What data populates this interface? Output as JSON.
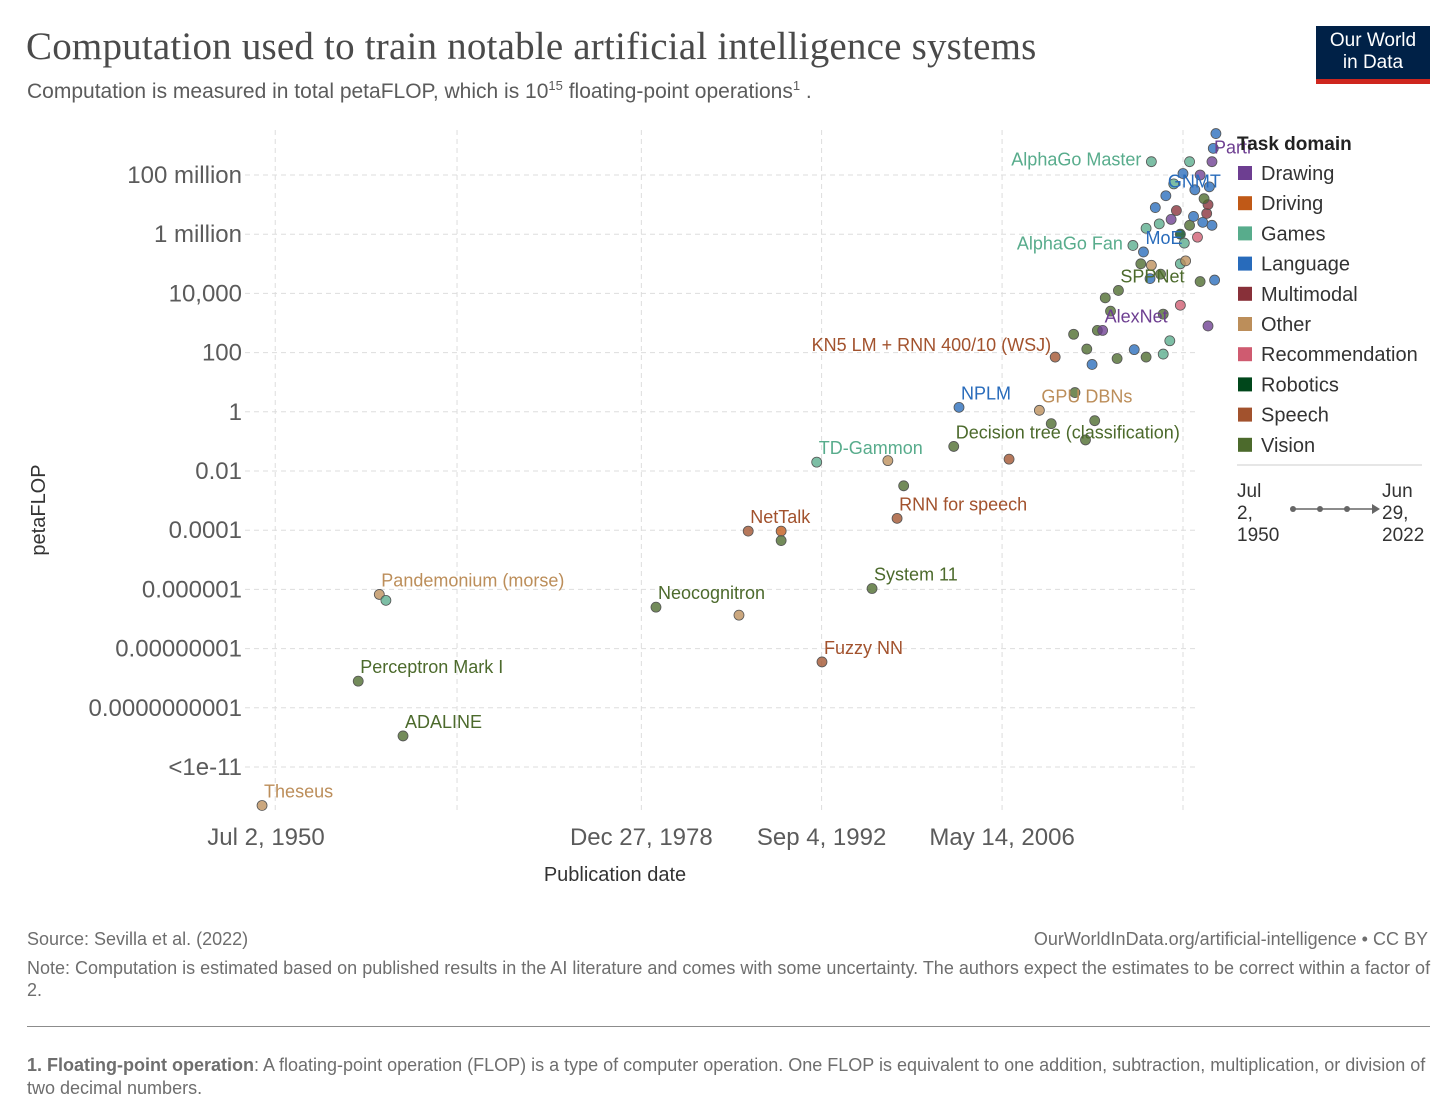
{
  "title": "Computation used to train notable artificial intelligence systems",
  "subtitle": "Computation is measured in total petaFLOP, which is 10",
  "subtitle_sup": "15",
  "subtitle_end": " floating-point operations",
  "subtitle_ref": "1",
  "subtitle_tail": " .",
  "logo": {
    "line1": "Our World",
    "line2": "in Data",
    "bg": "#002147",
    "accent": "#ce261e"
  },
  "footer": {
    "source": "Source: Sevilla et al. (2022)",
    "url": "OurWorldInData.org/artificial-intelligence • CC BY",
    "note": "Note: Computation is estimated based on published results in the AI literature and comes with some uncertainty. The authors expect the estimates to be correct within a factor of 2.",
    "footnote_term": "1. Floating-point operation",
    "footnote_text": ": A floating-point operation (FLOP) is a type of computer operation. One FLOP is equivalent to one addition, subtraction, multiplication, or division of two decimal numbers."
  },
  "timeline": {
    "start_label": [
      "Jul",
      "2,",
      "1950"
    ],
    "end_label": [
      "Jun",
      "29,",
      "2022"
    ]
  },
  "chart_data": {
    "type": "scatter",
    "ylabel": "petaFLOP",
    "xlabel": "Publication date",
    "y_scale": "log",
    "y_ticks": [
      {
        "label": "100 million",
        "exp": 8
      },
      {
        "label": "1 million",
        "exp": 6
      },
      {
        "label": "10,000",
        "exp": 4
      },
      {
        "label": "100",
        "exp": 2
      },
      {
        "label": "1",
        "exp": 0
      },
      {
        "label": "0.01",
        "exp": -2
      },
      {
        "label": "0.0001",
        "exp": -4
      },
      {
        "label": "0.000001",
        "exp": -6
      },
      {
        "label": "0.00000001",
        "exp": -8
      },
      {
        "label": "0.0000000001",
        "exp": -10
      },
      {
        "label": "<1e-11",
        "exp": -12
      }
    ],
    "x_ticks": [
      {
        "label": "Jul 2, 1950",
        "year": 1950.5
      },
      {
        "label": "Dec 27, 1978",
        "year": 1978.99
      },
      {
        "label": "Sep 4, 1992",
        "year": 1992.67
      },
      {
        "label": "May 14, 2006",
        "year": 2006.37
      }
    ],
    "x_gridlines": [
      1951.2,
      1965.0,
      1978.99,
      1992.67,
      2006.37,
      2020.1
    ],
    "grid": true,
    "legend_position": "right",
    "legend_title": "Task domain",
    "domains": [
      {
        "name": "Drawing",
        "color": "#6d3e91"
      },
      {
        "name": "Driving",
        "color": "#c05917"
      },
      {
        "name": "Games",
        "color": "#58ac8c"
      },
      {
        "name": "Language",
        "color": "#286bbb"
      },
      {
        "name": "Multimodal",
        "color": "#883039"
      },
      {
        "name": "Other",
        "color": "#bc8e5a"
      },
      {
        "name": "Recommendation",
        "color": "#cf5b70"
      },
      {
        "name": "Robotics",
        "color": "#00471b"
      },
      {
        "name": "Speech",
        "color": "#a2522d"
      },
      {
        "name": "Vision",
        "color": "#4c6a2c"
      }
    ],
    "points": [
      {
        "name": "Theseus",
        "year": 1950.2,
        "logy": -13.3,
        "domain": "Other",
        "labeled": true
      },
      {
        "name": "Perceptron Mark I",
        "year": 1957.5,
        "logy": -9.1,
        "domain": "Vision",
        "labeled": true
      },
      {
        "name": "ADALINE",
        "year": 1960.9,
        "logy": -10.95,
        "domain": "Vision",
        "labeled": true
      },
      {
        "name": "Pandemonium (morse)",
        "year": 1959.1,
        "logy": -6.17,
        "domain": "Other",
        "labeled": true
      },
      {
        "name": "",
        "year": 1959.6,
        "logy": -6.37,
        "domain": "Games",
        "labeled": false
      },
      {
        "name": "Neocognitron",
        "year": 1980.1,
        "logy": -6.6,
        "domain": "Vision",
        "labeled": true
      },
      {
        "name": "",
        "year": 1986.4,
        "logy": -6.87,
        "domain": "Other",
        "labeled": false
      },
      {
        "name": "NetTalk",
        "year": 1987.1,
        "logy": -4.03,
        "domain": "Speech",
        "labeled": true
      },
      {
        "name": "",
        "year": 1989.6,
        "logy": -4.03,
        "domain": "Driving",
        "labeled": false
      },
      {
        "name": "",
        "year": 1989.6,
        "logy": -4.35,
        "domain": "Vision",
        "labeled": false
      },
      {
        "name": "TD-Gammon",
        "year": 1992.3,
        "logy": -1.7,
        "domain": "Games",
        "labeled": true
      },
      {
        "name": "Fuzzy NN",
        "year": 1992.7,
        "logy": -8.45,
        "domain": "Speech",
        "labeled": true
      },
      {
        "name": "System 11",
        "year": 1996.5,
        "logy": -5.97,
        "domain": "Vision",
        "labeled": true
      },
      {
        "name": "",
        "year": 1997.7,
        "logy": -1.65,
        "domain": "Other",
        "labeled": false
      },
      {
        "name": "RNN for speech",
        "year": 1998.4,
        "logy": -3.6,
        "domain": "Speech",
        "labeled": true
      },
      {
        "name": "",
        "year": 1998.9,
        "logy": -2.5,
        "domain": "Vision",
        "labeled": false
      },
      {
        "name": "Decision tree (classification)",
        "year": 2002.7,
        "logy": -1.17,
        "domain": "Vision",
        "labeled": true
      },
      {
        "name": "",
        "year": 2006.9,
        "logy": -1.6,
        "domain": "Speech",
        "labeled": false
      },
      {
        "name": "NPLM",
        "year": 2003.1,
        "logy": 0.15,
        "domain": "Language",
        "labeled": true
      },
      {
        "name": "GPU DBNs",
        "year": 2009.2,
        "logy": 0.05,
        "domain": "Other",
        "labeled": true
      },
      {
        "name": "",
        "year": 2010.1,
        "logy": -0.4,
        "domain": "Vision",
        "labeled": false
      },
      {
        "name": "",
        "year": 2011.9,
        "logy": 0.65,
        "domain": "Vision",
        "labeled": false
      },
      {
        "name": "",
        "year": 2012.7,
        "logy": -0.95,
        "domain": "Vision",
        "labeled": false
      },
      {
        "name": "",
        "year": 2013.4,
        "logy": -0.3,
        "domain": "Vision",
        "labeled": false
      },
      {
        "name": "KN5 LM + RNN 400/10 (WSJ)",
        "year": 2010.4,
        "logy": 1.85,
        "domain": "Speech",
        "labeled": true
      },
      {
        "name": "",
        "year": 2011.8,
        "logy": 2.62,
        "domain": "Vision",
        "labeled": false
      },
      {
        "name": "",
        "year": 2012.8,
        "logy": 2.12,
        "domain": "Vision",
        "labeled": false
      },
      {
        "name": "",
        "year": 2013.2,
        "logy": 1.6,
        "domain": "Language",
        "labeled": false
      },
      {
        "name": "",
        "year": 2013.6,
        "logy": 2.75,
        "domain": "Vision",
        "labeled": false
      },
      {
        "name": "AlexNet",
        "year": 2014.0,
        "logy": 2.75,
        "domain": "Drawing",
        "labeled": true
      },
      {
        "name": "",
        "year": 2014.6,
        "logy": 3.4,
        "domain": "Vision",
        "labeled": false
      },
      {
        "name": "",
        "year": 2014.2,
        "logy": 3.85,
        "domain": "Vision",
        "labeled": false
      },
      {
        "name": "SPPNet",
        "year": 2015.2,
        "logy": 4.1,
        "domain": "Vision",
        "labeled": true
      },
      {
        "name": "",
        "year": 2016.4,
        "logy": 2.1,
        "domain": "Language",
        "labeled": false
      },
      {
        "name": "",
        "year": 2015.1,
        "logy": 1.8,
        "domain": "Vision",
        "labeled": false
      },
      {
        "name": "",
        "year": 2017.3,
        "logy": 1.85,
        "domain": "Vision",
        "labeled": false
      },
      {
        "name": "",
        "year": 2018.6,
        "logy": 1.95,
        "domain": "Games",
        "labeled": false
      },
      {
        "name": "",
        "year": 2019.1,
        "logy": 2.4,
        "domain": "Games",
        "labeled": false
      },
      {
        "name": "",
        "year": 2018.6,
        "logy": 3.3,
        "domain": "Vision",
        "labeled": false
      },
      {
        "name": "",
        "year": 2019.9,
        "logy": 3.6,
        "domain": "Recommendation",
        "labeled": false
      },
      {
        "name": "",
        "year": 2017.6,
        "logy": 4.5,
        "domain": "Language",
        "labeled": false
      },
      {
        "name": "",
        "year": 2018.4,
        "logy": 4.65,
        "domain": "Vision",
        "labeled": false
      },
      {
        "name": "",
        "year": 2016.9,
        "logy": 5.0,
        "domain": "Vision",
        "labeled": false
      },
      {
        "name": "MoE",
        "year": 2017.1,
        "logy": 5.4,
        "domain": "Language",
        "labeled": true
      },
      {
        "name": "",
        "year": 2017.7,
        "logy": 4.95,
        "domain": "Other",
        "labeled": false
      },
      {
        "name": "",
        "year": 2019.9,
        "logy": 5.0,
        "domain": "Games",
        "labeled": false
      },
      {
        "name": "",
        "year": 2020.3,
        "logy": 5.1,
        "domain": "Other",
        "labeled": false
      },
      {
        "name": "",
        "year": 2021.4,
        "logy": 4.4,
        "domain": "Vision",
        "labeled": false
      },
      {
        "name": "",
        "year": 2022.5,
        "logy": 4.45,
        "domain": "Language",
        "labeled": false
      },
      {
        "name": "",
        "year": 2022.0,
        "logy": 2.9,
        "domain": "Drawing",
        "labeled": false
      },
      {
        "name": "AlphaGo Fan",
        "year": 2016.3,
        "logy": 5.62,
        "domain": "Games",
        "labeled": true
      },
      {
        "name": "",
        "year": 2017.3,
        "logy": 6.2,
        "domain": "Games",
        "labeled": false
      },
      {
        "name": "",
        "year": 2018.3,
        "logy": 6.35,
        "domain": "Games",
        "labeled": false
      },
      {
        "name": "",
        "year": 2018.0,
        "logy": 6.9,
        "domain": "Language",
        "labeled": false
      },
      {
        "name": "GNMT",
        "year": 2018.8,
        "logy": 7.3,
        "domain": "Language",
        "labeled": true
      },
      {
        "name": "",
        "year": 2019.2,
        "logy": 6.5,
        "domain": "Drawing",
        "labeled": false
      },
      {
        "name": "",
        "year": 2019.6,
        "logy": 6.8,
        "domain": "Multimodal",
        "labeled": false
      },
      {
        "name": "",
        "year": 2019.9,
        "logy": 6.0,
        "domain": "Robotics",
        "labeled": false
      },
      {
        "name": "",
        "year": 2020.2,
        "logy": 5.7,
        "domain": "Games",
        "labeled": false
      },
      {
        "name": "",
        "year": 2020.6,
        "logy": 6.3,
        "domain": "Vision",
        "labeled": false
      },
      {
        "name": "",
        "year": 2020.9,
        "logy": 6.6,
        "domain": "Language",
        "labeled": false
      },
      {
        "name": "",
        "year": 2021.2,
        "logy": 5.9,
        "domain": "Recommendation",
        "labeled": false
      },
      {
        "name": "",
        "year": 2021.6,
        "logy": 6.4,
        "domain": "Language",
        "labeled": false
      },
      {
        "name": "",
        "year": 2021.9,
        "logy": 6.7,
        "domain": "Multimodal",
        "labeled": false
      },
      {
        "name": "",
        "year": 2022.3,
        "logy": 6.3,
        "domain": "Language",
        "labeled": false
      },
      {
        "name": "AlphaGo Master",
        "year": 2017.7,
        "logy": 8.45,
        "domain": "Games",
        "labeled": true
      },
      {
        "name": "",
        "year": 2019.4,
        "logy": 7.7,
        "domain": "Games",
        "labeled": false
      },
      {
        "name": "",
        "year": 2020.1,
        "logy": 8.05,
        "domain": "Language",
        "labeled": false
      },
      {
        "name": "",
        "year": 2020.6,
        "logy": 8.45,
        "domain": "Games",
        "labeled": false
      },
      {
        "name": "",
        "year": 2021.0,
        "logy": 7.5,
        "domain": "Language",
        "labeled": false
      },
      {
        "name": "",
        "year": 2021.4,
        "logy": 8.0,
        "domain": "Drawing",
        "labeled": false
      },
      {
        "name": "Parti",
        "year": 2022.3,
        "logy": 8.45,
        "domain": "Drawing",
        "labeled": true
      },
      {
        "name": "",
        "year": 2022.1,
        "logy": 7.6,
        "domain": "Language",
        "labeled": false
      },
      {
        "name": "",
        "year": 2022.4,
        "logy": 8.9,
        "domain": "Language",
        "labeled": false
      },
      {
        "name": "",
        "year": 2022.6,
        "logy": 9.4,
        "domain": "Language",
        "labeled": false
      },
      {
        "name": "",
        "year": 2022.0,
        "logy": 7.0,
        "domain": "Multimodal",
        "labeled": false
      },
      {
        "name": "",
        "year": 2021.7,
        "logy": 7.2,
        "domain": "Vision",
        "labeled": false
      }
    ]
  }
}
